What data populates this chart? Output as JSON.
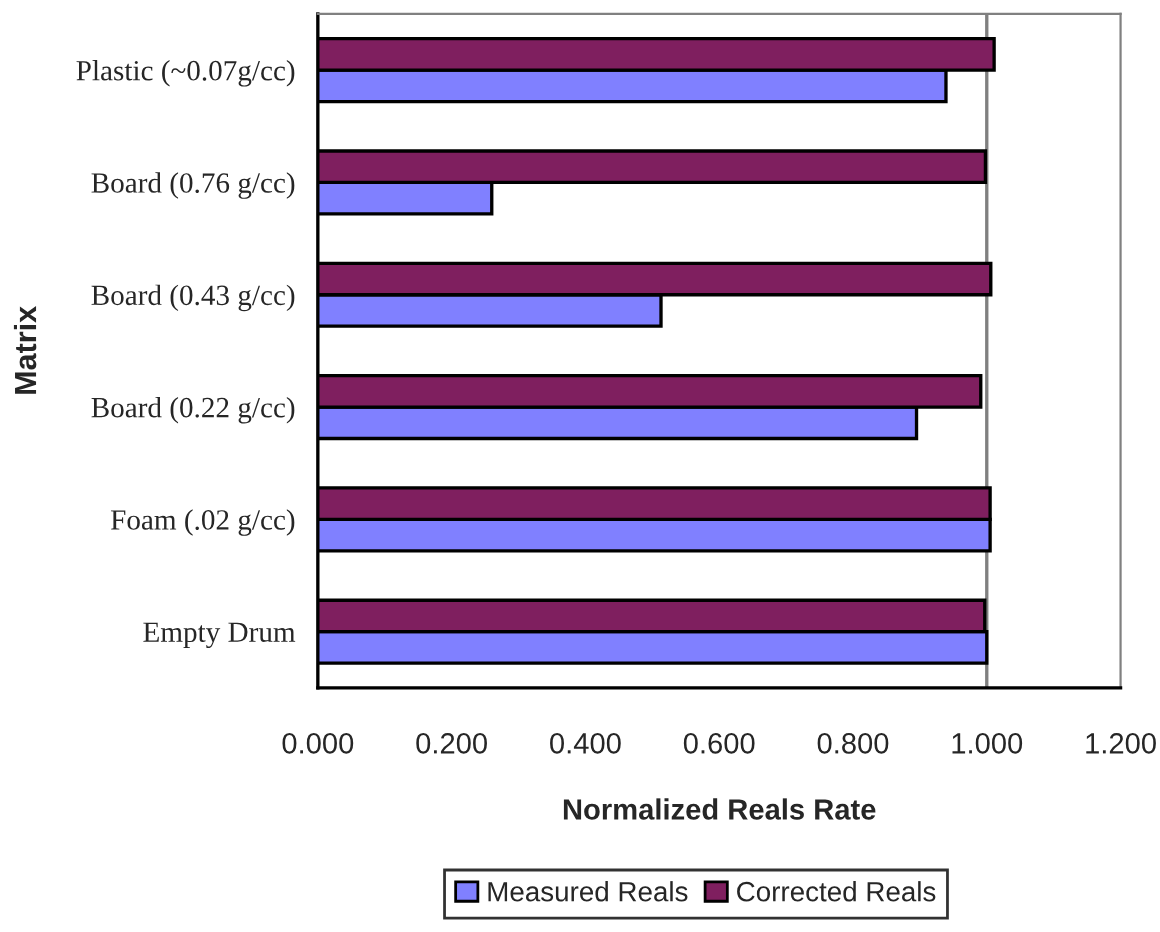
{
  "chart_data": {
    "type": "bar",
    "orientation": "horizontal",
    "xlabel": "Normalized Reals Rate",
    "ylabel": "Matrix",
    "categories": [
      "Plastic (~0.07g/cc)",
      "Board (0.76 g/cc)",
      "Board (0.43 g/cc)",
      "Board (0.22 g/cc)",
      "Foam (.02 g/cc)",
      "Empty Drum"
    ],
    "series": [
      {
        "name": "Measured Reals",
        "color": "#8080ff",
        "values": [
          0.939,
          0.26,
          0.513,
          0.895,
          1.005,
          1.0
        ]
      },
      {
        "name": "Corrected Reals",
        "color": "#7f1f5f",
        "values": [
          1.011,
          0.998,
          1.006,
          0.991,
          1.005,
          0.997
        ]
      }
    ],
    "xlim": [
      0,
      1.2
    ],
    "xticks": [
      {
        "value": 0,
        "label": "0.000"
      },
      {
        "value": 0.2,
        "label": "0.200"
      },
      {
        "value": 0.4,
        "label": "0.400"
      },
      {
        "value": 0.6,
        "label": "0.600"
      },
      {
        "value": 0.8,
        "label": "0.800"
      },
      {
        "value": 1.0,
        "label": "1.000"
      },
      {
        "value": 1.2,
        "label": "1.200"
      }
    ],
    "ref_lines": [
      {
        "axis": "x",
        "value": 1.0,
        "color": "#808080"
      }
    ],
    "grid": false,
    "legend": "bottom"
  }
}
